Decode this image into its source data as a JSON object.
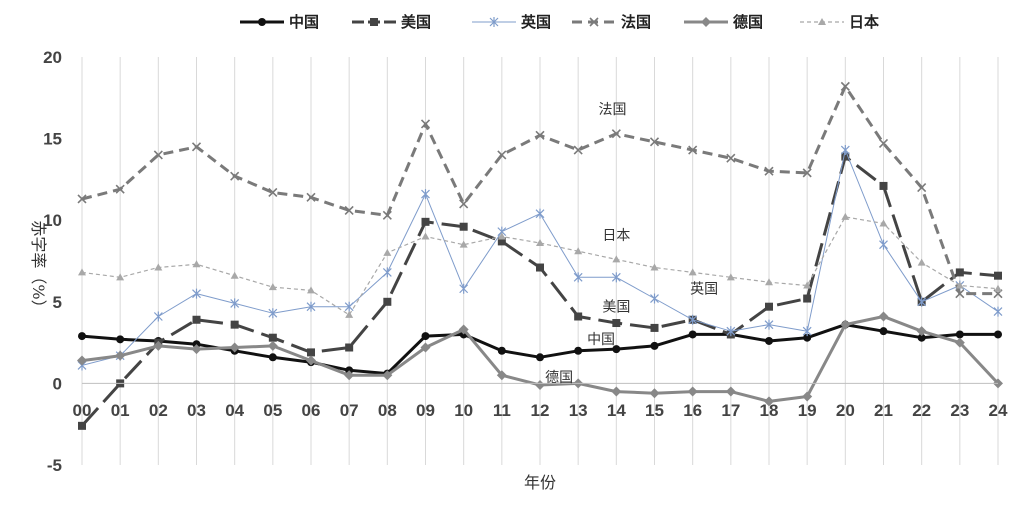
{
  "chart_data": {
    "type": "line",
    "categories": [
      "00",
      "01",
      "02",
      "03",
      "04",
      "05",
      "06",
      "07",
      "08",
      "09",
      "10",
      "11",
      "12",
      "13",
      "14",
      "15",
      "16",
      "17",
      "18",
      "19",
      "20",
      "21",
      "22",
      "23",
      "24"
    ],
    "xlabel": "年份",
    "ylabel": "赤字率（%）",
    "ylim": [
      -5,
      20
    ],
    "yticks": [
      -5,
      0,
      5,
      10,
      15,
      20
    ],
    "grid": "vertical",
    "legend_position": "top",
    "series": [
      {
        "name": "中国",
        "color": "#111111",
        "marker": "circle",
        "dash": "solid",
        "width": 3,
        "values": [
          2.9,
          2.7,
          2.6,
          2.4,
          2.0,
          1.6,
          1.3,
          0.8,
          0.6,
          2.9,
          3.0,
          2.0,
          1.6,
          2.0,
          2.1,
          2.3,
          3.0,
          3.0,
          2.6,
          2.8,
          3.6,
          3.2,
          2.8,
          3.0,
          3.0
        ]
      },
      {
        "name": "美国",
        "color": "#444444",
        "marker": "square",
        "dash": "longdash",
        "width": 3,
        "values": [
          -2.6,
          0.0,
          2.5,
          3.9,
          3.6,
          2.8,
          1.9,
          2.2,
          5.0,
          9.9,
          9.6,
          8.7,
          7.1,
          4.1,
          3.7,
          3.4,
          3.9,
          3.0,
          4.7,
          5.2,
          13.9,
          12.1,
          5.0,
          6.8,
          6.6
        ]
      },
      {
        "name": "英国",
        "color": "#7f9ccb",
        "marker": "star",
        "dash": "solid",
        "width": 1,
        "values": [
          1.1,
          1.7,
          4.1,
          5.5,
          4.9,
          4.3,
          4.7,
          4.7,
          6.8,
          11.6,
          5.8,
          9.3,
          10.4,
          6.5,
          6.5,
          5.2,
          3.9,
          3.2,
          3.6,
          3.2,
          14.3,
          8.5,
          5.0,
          6.0,
          4.4
        ]
      },
      {
        "name": "法国",
        "color": "#7a7a7a",
        "marker": "x",
        "dash": "dashed",
        "width": 3,
        "values": [
          11.3,
          11.9,
          14.0,
          14.5,
          12.7,
          11.7,
          11.4,
          10.6,
          10.3,
          15.9,
          11.0,
          14.0,
          15.2,
          14.3,
          15.3,
          14.8,
          14.3,
          13.8,
          13.0,
          12.9,
          18.2,
          14.7,
          12.0,
          5.5,
          5.5
        ]
      },
      {
        "name": "德国",
        "color": "#888888",
        "marker": "diamond",
        "dash": "solid",
        "width": 3,
        "values": [
          1.4,
          1.7,
          2.3,
          2.1,
          2.2,
          2.3,
          1.4,
          0.5,
          0.5,
          2.2,
          3.3,
          0.5,
          -0.1,
          0.0,
          -0.5,
          -0.6,
          -0.5,
          -0.5,
          -1.1,
          -0.8,
          3.6,
          4.1,
          3.2,
          2.5,
          0.0
        ]
      },
      {
        "name": "日本",
        "color": "#a8a8a8",
        "marker": "triangle",
        "dash": "dotted",
        "width": 1.2,
        "values": [
          6.8,
          6.5,
          7.1,
          7.3,
          6.6,
          5.9,
          5.7,
          4.2,
          8.0,
          9.0,
          8.5,
          9.0,
          8.6,
          8.1,
          7.6,
          7.1,
          6.8,
          6.5,
          6.2,
          6.0,
          10.2,
          9.8,
          7.4,
          6.0,
          5.8
        ]
      }
    ],
    "annotations": [
      {
        "text": "法国",
        "x": 13.9,
        "y": 16.5
      },
      {
        "text": "日本",
        "x": 14.0,
        "y": 8.8
      },
      {
        "text": "英国",
        "x": 16.3,
        "y": 5.5
      },
      {
        "text": "美国",
        "x": 14.0,
        "y": 4.4
      },
      {
        "text": "中国",
        "x": 13.6,
        "y": 2.4
      },
      {
        "text": "德国",
        "x": 12.5,
        "y": 0.1
      }
    ]
  }
}
